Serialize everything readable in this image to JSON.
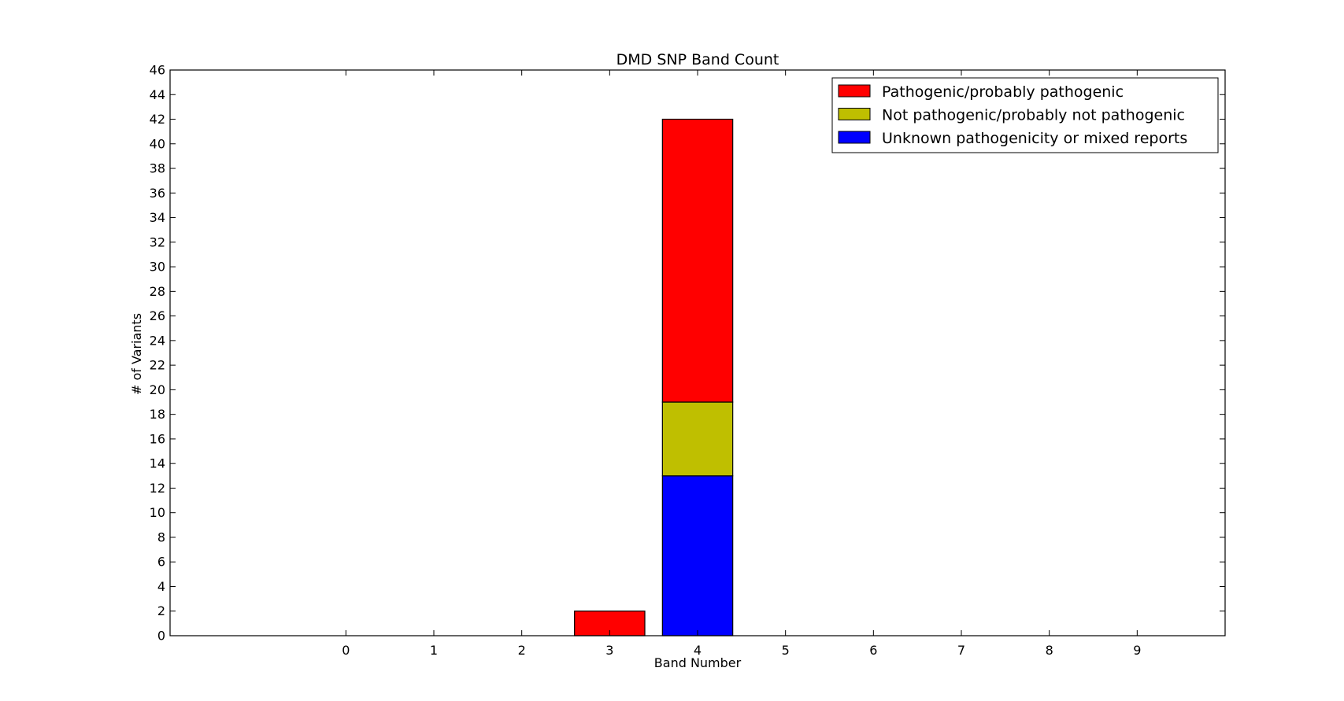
{
  "chart_data": {
    "type": "bar",
    "stacked": true,
    "title": "DMD SNP Band Count",
    "xlabel": "Band Number",
    "ylabel": "# of Variants",
    "categories": [
      "0",
      "1",
      "2",
      "3",
      "4",
      "5",
      "6",
      "7",
      "8",
      "9"
    ],
    "x_range": [
      -2,
      10
    ],
    "ylim": [
      0,
      46
    ],
    "y_ticks": [
      0,
      2,
      4,
      6,
      8,
      10,
      12,
      14,
      16,
      18,
      20,
      22,
      24,
      26,
      28,
      30,
      32,
      34,
      36,
      38,
      40,
      42,
      44,
      46
    ],
    "grid": false,
    "legend_position": "top-right",
    "series": [
      {
        "name": "Unknown pathogenicity or mixed reports",
        "color": "#0000ff",
        "values": [
          0,
          0,
          0,
          0,
          13,
          0,
          0,
          0,
          0,
          0
        ]
      },
      {
        "name": "Not pathogenic/probably not pathogenic",
        "color": "#bfbf00",
        "values": [
          0,
          0,
          0,
          0,
          6,
          0,
          0,
          0,
          0,
          0
        ]
      },
      {
        "name": "Pathogenic/probably pathogenic",
        "color": "#ff0000",
        "values": [
          0,
          0,
          0,
          2,
          23,
          0,
          0,
          0,
          0,
          0
        ]
      }
    ],
    "legend_order": [
      "Pathogenic/probably pathogenic",
      "Not pathogenic/probably not pathogenic",
      "Unknown pathogenicity or mixed reports"
    ]
  }
}
